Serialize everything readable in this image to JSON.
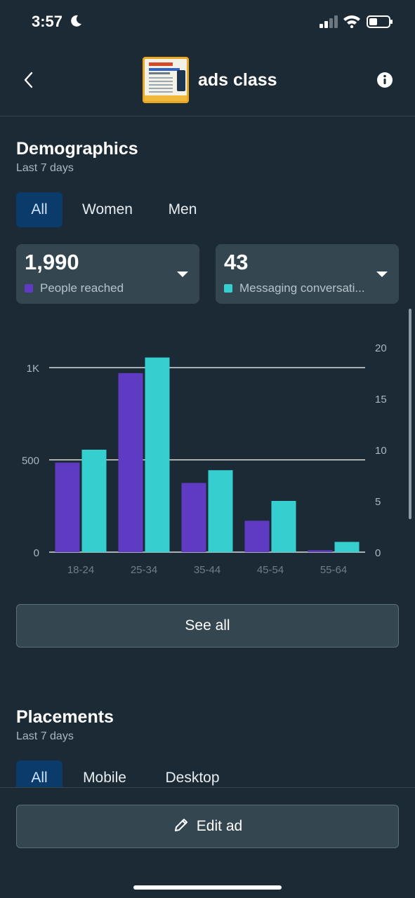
{
  "status_bar": {
    "time": "3:57"
  },
  "header": {
    "title": "ads class"
  },
  "demographics": {
    "title": "Demographics",
    "subtitle": "Last 7 days",
    "tabs": [
      "All",
      "Women",
      "Men"
    ],
    "active_tab": "All",
    "metrics": [
      {
        "value": "1,990",
        "label": "People reached",
        "color": "#5e3bc2"
      },
      {
        "value": "43",
        "label": "Messaging conversati...",
        "color": "#36cfd0"
      }
    ],
    "see_all_label": "See all"
  },
  "chart_data": {
    "type": "bar",
    "categories": [
      "18-24",
      "25-34",
      "35-44",
      "45-54",
      "55-64"
    ],
    "series": [
      {
        "name": "People reached",
        "axis": "left",
        "color": "#5e3bc2",
        "values": [
          485,
          970,
          375,
          170,
          10
        ]
      },
      {
        "name": "Messaging conversations",
        "axis": "right",
        "color": "#36cfd0",
        "values": [
          10,
          19,
          8,
          5,
          1
        ]
      }
    ],
    "ylim_left": [
      0,
      1000
    ],
    "yticks_left": [
      "0",
      "500",
      "1K"
    ],
    "ylim_right": [
      0,
      20
    ],
    "yticks_right": [
      "0",
      "5",
      "10",
      "15",
      "20"
    ],
    "grid": true
  },
  "placements": {
    "title": "Placements",
    "subtitle": "Last 7 days",
    "tabs": [
      "All",
      "Mobile",
      "Desktop"
    ],
    "active_tab": "All"
  },
  "footer": {
    "edit_label": "Edit ad"
  },
  "colors": {
    "background": "#1c2a35",
    "card": "#34464f",
    "active_tab": "#0a3b6b"
  }
}
